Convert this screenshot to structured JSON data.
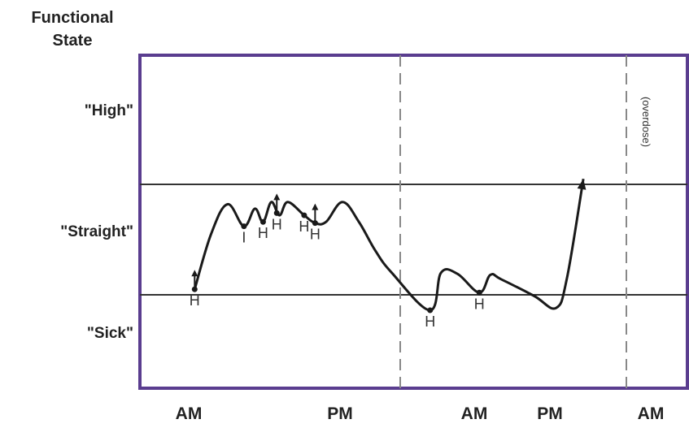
{
  "chart_data": {
    "type": "line",
    "ylabel_lines": [
      "Functional",
      "State"
    ],
    "y_levels": [
      "\"High\"",
      "\"Straight\"",
      "\"Sick\""
    ],
    "x_labels": [
      "AM",
      "PM",
      "AM",
      "PM",
      "AM"
    ],
    "series": [
      {
        "values": [
          [
            0.1,
            0.05
          ],
          [
            0.13,
            0.55
          ],
          [
            0.16,
            0.82
          ],
          [
            0.19,
            0.62
          ],
          [
            0.21,
            0.78
          ],
          [
            0.225,
            0.66
          ],
          [
            0.24,
            0.84
          ],
          [
            0.255,
            0.72
          ],
          [
            0.27,
            0.84
          ],
          [
            0.3,
            0.72
          ],
          [
            0.32,
            0.65
          ],
          [
            0.34,
            0.66
          ],
          [
            0.37,
            0.84
          ],
          [
            0.4,
            0.66
          ],
          [
            0.43,
            0.4
          ],
          [
            0.46,
            0.2
          ],
          [
            0.53,
            -0.14
          ],
          [
            0.55,
            0.2
          ],
          [
            0.58,
            0.19
          ],
          [
            0.62,
            0.02
          ],
          [
            0.64,
            0.18
          ],
          [
            0.66,
            0.14
          ],
          [
            0.72,
            -0.01
          ],
          [
            0.76,
            -0.12
          ],
          [
            0.78,
            0.15
          ],
          [
            0.81,
            1.05
          ]
        ]
      }
    ],
    "markers": [
      {
        "x": 0.1,
        "y": 0.05,
        "label": "H",
        "arrow": true
      },
      {
        "x": 0.19,
        "y": 0.62,
        "label": "I",
        "arrow": false
      },
      {
        "x": 0.225,
        "y": 0.66,
        "label": "H",
        "arrow": false
      },
      {
        "x": 0.25,
        "y": 0.74,
        "label": "H",
        "arrow": true
      },
      {
        "x": 0.3,
        "y": 0.72,
        "label": "H",
        "arrow": false
      },
      {
        "x": 0.32,
        "y": 0.65,
        "label": "H",
        "arrow": true
      },
      {
        "x": 0.53,
        "y": -0.14,
        "label": "H",
        "arrow": false
      },
      {
        "x": 0.62,
        "y": 0.02,
        "label": "H",
        "arrow": false
      }
    ],
    "annotations": [
      "(overdose)"
    ],
    "grid": true
  }
}
